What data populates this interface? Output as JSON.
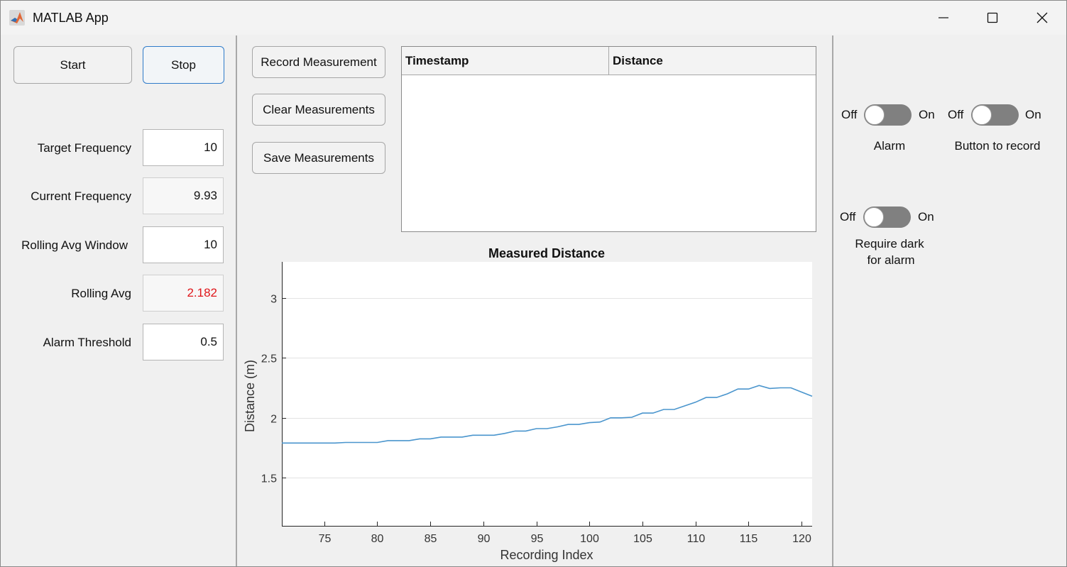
{
  "window": {
    "title": "MATLAB App"
  },
  "controls": {
    "start_label": "Start",
    "stop_label": "Stop",
    "fields": [
      {
        "label": "Target Frequency",
        "value": "10",
        "editable": true
      },
      {
        "label": "Current Frequency",
        "value": "9.93",
        "editable": false
      },
      {
        "label": "Rolling Avg Window",
        "value": "10",
        "editable": true
      },
      {
        "label": "Rolling Avg",
        "value": "2.182",
        "editable": false,
        "color": "#e0161a"
      },
      {
        "label": "Alarm Threshold",
        "value": "0.5",
        "editable": true
      }
    ]
  },
  "measurements": {
    "record_label": "Record Measurement",
    "clear_label": "Clear Measurements",
    "save_label": "Save Measurements",
    "table_headers": [
      "Timestamp",
      "Distance"
    ],
    "rows": []
  },
  "toggles": [
    {
      "off": "Off",
      "on": "On",
      "label": "Alarm",
      "state": "off"
    },
    {
      "off": "Off",
      "on": "On",
      "label": "Button to record",
      "state": "off"
    },
    {
      "off": "Off",
      "on": "On",
      "label_lines": [
        "Require dark",
        "for alarm"
      ],
      "state": "off"
    }
  ],
  "chart_data": {
    "type": "line",
    "title": "Measured Distance",
    "xlabel": "Recording Index",
    "ylabel": "Distance (m)",
    "xlim": [
      71,
      121
    ],
    "ylim": [
      1.1,
      3.3
    ],
    "xticks": [
      75,
      80,
      85,
      90,
      95,
      100,
      105,
      110,
      115,
      120
    ],
    "yticks": [
      1.5,
      2,
      2.5,
      3
    ],
    "ytick_labels": [
      "1.5",
      "2",
      "2.5",
      "3"
    ],
    "grid": "horizontal",
    "line_color": "#4a95cd",
    "x": [
      71,
      72,
      73,
      74,
      75,
      76,
      77,
      78,
      79,
      80,
      81,
      82,
      83,
      84,
      85,
      86,
      87,
      88,
      89,
      90,
      91,
      92,
      93,
      94,
      95,
      96,
      97,
      98,
      99,
      100,
      101,
      102,
      103,
      104,
      105,
      106,
      107,
      108,
      109,
      110,
      111,
      112,
      113,
      114,
      115,
      116,
      117,
      118,
      119,
      120,
      121
    ],
    "y": [
      1.79,
      1.79,
      1.79,
      1.79,
      1.79,
      1.79,
      1.795,
      1.795,
      1.795,
      1.795,
      1.81,
      1.81,
      1.81,
      1.825,
      1.825,
      1.84,
      1.84,
      1.84,
      1.855,
      1.855,
      1.855,
      1.87,
      1.89,
      1.89,
      1.91,
      1.91,
      1.925,
      1.945,
      1.945,
      1.96,
      1.965,
      2.0,
      2.0,
      2.005,
      2.04,
      2.04,
      2.07,
      2.07,
      2.1,
      2.13,
      2.17,
      2.17,
      2.2,
      2.24,
      2.24,
      2.27,
      2.245,
      2.25,
      2.25,
      2.215,
      2.18
    ]
  }
}
